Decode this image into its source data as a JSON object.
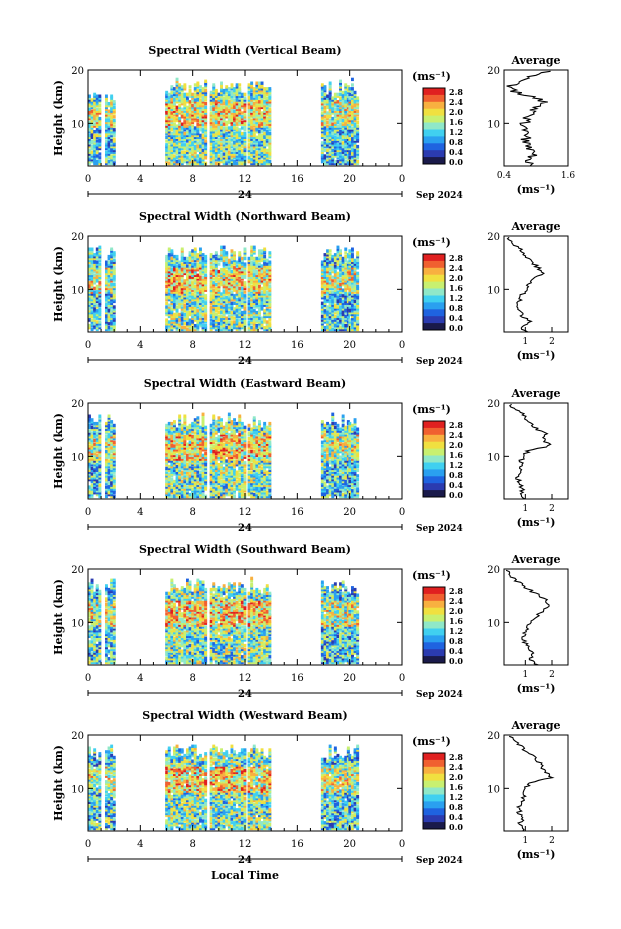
{
  "chart_data": {
    "type": "heatmap",
    "shared": {
      "x_tick_labels": [
        "0",
        "4",
        "8",
        "12",
        "16",
        "20",
        "0"
      ],
      "x_range": [
        0,
        24
      ],
      "date_day_label": "24",
      "date_month_label": "Sep 2024",
      "y_tick_labels": [
        "20",
        "10"
      ],
      "y_range": [
        2,
        20
      ],
      "ylabel": "Height (km)",
      "xlabel": "Local Time",
      "colorbar_unit": "(ms⁻¹)",
      "colorbar_ticks": [
        "2.8",
        "2.4",
        "2.0",
        "1.6",
        "1.2",
        "0.8",
        "0.4",
        "0.0"
      ],
      "colorbar_colors": [
        "#1a1a4a",
        "#2b3bb0",
        "#1f63e0",
        "#2aa0f0",
        "#40d0f0",
        "#8fe8c8",
        "#c8f070",
        "#f0e040",
        "#f8b040",
        "#f06030",
        "#e02020"
      ],
      "avg_title": "Average",
      "avg_unit": "(ms⁻¹)",
      "avg_y_tick_labels": [
        "20",
        "10"
      ],
      "data_segments": [
        [
          0.0,
          0.9
        ],
        [
          1.3,
          2.0
        ],
        [
          5.9,
          9.0
        ],
        [
          9.3,
          12.0
        ],
        [
          12.2,
          13.9
        ],
        [
          17.8,
          19.8
        ],
        [
          19.9,
          20.5
        ]
      ]
    },
    "panels": [
      {
        "title": "Spectral Width (Vertical Beam)",
        "avg_x_ticks": [
          "0.4",
          "1.6"
        ],
        "avg_x_range": [
          0.4,
          1.6
        ],
        "avg_profile": {
          "height": [
            2,
            3,
            4,
            5,
            6,
            7,
            8,
            9,
            10,
            11,
            12,
            13,
            14,
            15,
            16,
            17,
            18,
            19,
            20
          ],
          "value": [
            0.9,
            0.85,
            0.95,
            0.9,
            0.85,
            0.8,
            0.9,
            0.75,
            0.8,
            0.85,
            0.9,
            1.0,
            1.2,
            0.9,
            0.6,
            0.5,
            0.7,
            1.0,
            1.3
          ]
        }
      },
      {
        "title": "Spectral Width (Northward Beam)",
        "avg_x_ticks": [
          "1",
          "2"
        ],
        "avg_x_range": [
          0.2,
          2.6
        ],
        "avg_profile": {
          "height": [
            2,
            3,
            4,
            5,
            6,
            7,
            8,
            9,
            10,
            11,
            12,
            13,
            14,
            15,
            16,
            17,
            18,
            19,
            20
          ],
          "value": [
            1.1,
            0.8,
            1.2,
            0.9,
            0.8,
            0.7,
            0.8,
            0.9,
            1.0,
            1.1,
            1.3,
            1.6,
            1.5,
            1.3,
            1.1,
            0.9,
            0.7,
            0.5,
            0.3
          ]
        }
      },
      {
        "title": "Spectral Width (Eastward Beam)",
        "avg_x_ticks": [
          "1",
          "2"
        ],
        "avg_x_range": [
          0.2,
          2.6
        ],
        "avg_profile": {
          "height": [
            2,
            3,
            4,
            5,
            6,
            7,
            8,
            9,
            10,
            11,
            12,
            13,
            14,
            15,
            16,
            17,
            18,
            19,
            20
          ],
          "value": [
            1.0,
            0.8,
            0.9,
            0.8,
            0.7,
            0.75,
            0.8,
            0.85,
            0.9,
            1.1,
            1.9,
            1.7,
            1.8,
            1.5,
            1.2,
            1.0,
            0.9,
            0.6,
            0.4
          ]
        }
      },
      {
        "title": "Spectral Width (Southward Beam)",
        "avg_x_ticks": [
          "1",
          "2"
        ],
        "avg_x_range": [
          0.2,
          2.6
        ],
        "avg_profile": {
          "height": [
            2,
            3,
            4,
            5,
            6,
            7,
            8,
            9,
            10,
            11,
            12,
            13,
            14,
            15,
            16,
            17,
            18,
            19,
            20
          ],
          "value": [
            1.5,
            1.2,
            1.3,
            1.1,
            1.0,
            0.9,
            1.0,
            1.1,
            1.2,
            1.4,
            1.6,
            1.9,
            1.8,
            1.5,
            1.2,
            0.9,
            0.6,
            0.4,
            0.2
          ]
        }
      },
      {
        "title": "Spectral Width (Westward Beam)",
        "avg_x_ticks": [
          "1",
          "2"
        ],
        "avg_x_range": [
          0.2,
          2.6
        ],
        "avg_profile": {
          "height": [
            2,
            3,
            4,
            5,
            6,
            7,
            8,
            9,
            10,
            11,
            12,
            13,
            14,
            15,
            16,
            17,
            18,
            19,
            20
          ],
          "value": [
            0.9,
            0.8,
            0.85,
            0.8,
            0.75,
            0.8,
            0.9,
            0.95,
            1.0,
            1.2,
            2.0,
            1.8,
            1.6,
            1.5,
            1.3,
            1.0,
            0.8,
            0.6,
            0.3
          ]
        }
      }
    ]
  }
}
